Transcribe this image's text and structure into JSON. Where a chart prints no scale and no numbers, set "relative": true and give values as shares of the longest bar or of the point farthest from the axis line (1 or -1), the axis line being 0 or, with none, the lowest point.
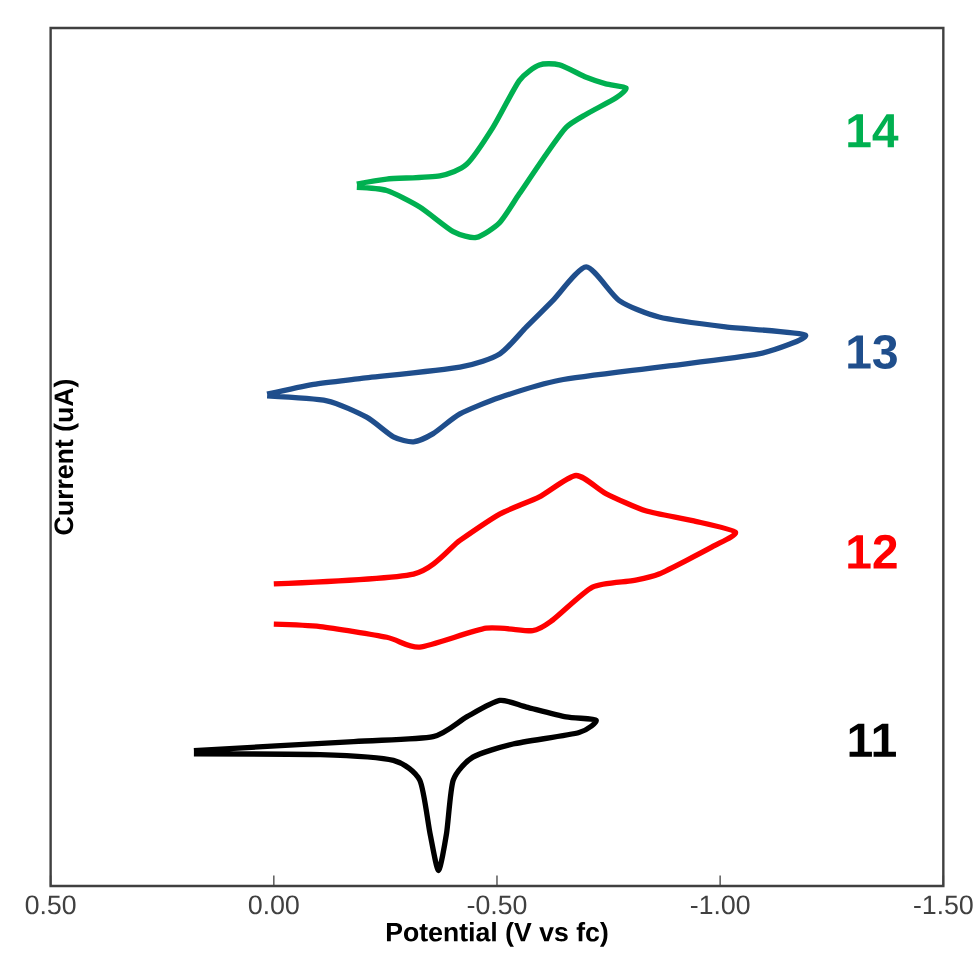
{
  "chart_data": {
    "type": "line",
    "relative": true,
    "xlabel": "Potential (V vs fc)",
    "ylabel": "Current (uA)",
    "xlim": [
      0.5,
      -1.5
    ],
    "xticks": [
      {
        "value": 0.5,
        "label": "0.50"
      },
      {
        "value": 0.0,
        "label": "0.00"
      },
      {
        "value": -0.5,
        "label": "-0.50"
      },
      {
        "value": -1.0,
        "label": "-1.00"
      },
      {
        "value": -1.5,
        "label": "-1.50"
      }
    ],
    "tick_labels": "x",
    "grid": false,
    "marker": "none",
    "line_style": "solid",
    "series": [
      {
        "name": "14",
        "color": "#00b050",
        "x": [
          -0.186,
          -0.253,
          -0.372,
          -0.432,
          -0.491,
          -0.55,
          -0.595,
          -0.64,
          -0.7,
          -0.744,
          -0.789,
          -0.767,
          -0.7,
          -0.655,
          -0.61,
          -0.55,
          -0.506,
          -0.454,
          -0.402,
          -0.327,
          -0.253,
          -0.186
        ],
        "values": [
          0.855,
          0.861,
          0.865,
          0.879,
          0.924,
          0.981,
          1.0,
          1.0,
          0.985,
          0.977,
          0.972,
          0.96,
          0.94,
          0.924,
          0.891,
          0.843,
          0.808,
          0.79,
          0.797,
          0.827,
          0.847,
          0.851
        ]
      },
      {
        "name": "13",
        "color": "#1f4e8c",
        "x": [
          0.015,
          -0.089,
          -0.193,
          -0.417,
          -0.506,
          -0.566,
          -0.625,
          -0.7,
          -0.774,
          -0.863,
          -1.012,
          -1.191,
          -1.086,
          -0.863,
          -0.64,
          -0.506,
          -0.417,
          -0.357,
          -0.313,
          -0.268,
          -0.208,
          -0.119,
          0.015
        ],
        "values": [
          0.599,
          0.611,
          0.618,
          0.632,
          0.648,
          0.681,
          0.713,
          0.754,
          0.713,
          0.693,
          0.681,
          0.671,
          0.648,
          0.632,
          0.616,
          0.595,
          0.575,
          0.551,
          0.541,
          0.547,
          0.571,
          0.591,
          0.597
        ]
      },
      {
        "name": "12",
        "color": "#ff0000",
        "x": [
          0.0,
          -0.313,
          -0.417,
          -0.506,
          -0.595,
          -0.677,
          -0.744,
          -0.833,
          -0.938,
          -1.034,
          -0.982,
          -0.863,
          -0.804,
          -0.714,
          -0.625,
          -0.58,
          -0.476,
          -0.327,
          -0.253,
          -0.104,
          0.0
        ],
        "values": [
          0.368,
          0.38,
          0.421,
          0.453,
          0.474,
          0.5,
          0.478,
          0.457,
          0.445,
          0.431,
          0.413,
          0.38,
          0.372,
          0.364,
          0.324,
          0.311,
          0.314,
          0.291,
          0.303,
          0.316,
          0.319
        ]
      },
      {
        "name": "11",
        "color": "#000000",
        "x": [
          0.179,
          -0.179,
          -0.357,
          -0.432,
          -0.506,
          -0.566,
          -0.655,
          -0.722,
          -0.684,
          -0.536,
          -0.446,
          -0.402,
          -0.387,
          -0.369,
          -0.35,
          -0.327,
          -0.268,
          -0.104,
          0.179
        ],
        "values": [
          0.165,
          0.176,
          0.182,
          0.206,
          0.226,
          0.218,
          0.206,
          0.202,
          0.187,
          0.173,
          0.157,
          0.129,
          0.064,
          0.019,
          0.064,
          0.129,
          0.153,
          0.16,
          0.161
        ]
      }
    ]
  }
}
